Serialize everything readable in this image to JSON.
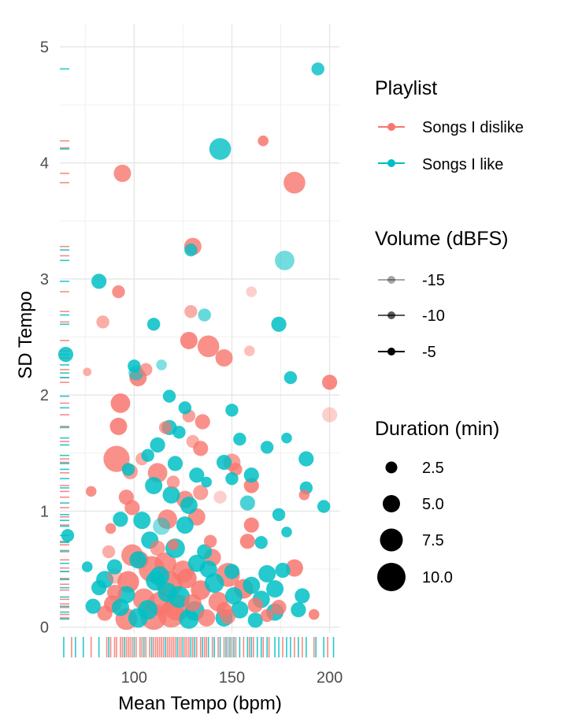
{
  "chart_data": {
    "type": "scatter",
    "xlabel": "Mean Tempo (bpm)",
    "ylabel": "SD Tempo",
    "xlim": [
      62,
      205
    ],
    "ylim": [
      -0.05,
      5.2
    ],
    "xticks": [
      100,
      150,
      200
    ],
    "yticks": [
      0,
      1,
      2,
      3,
      4,
      5
    ],
    "grid": true,
    "rug": true,
    "series": [
      {
        "name": "Songs I dislike",
        "color": "#F8766D",
        "points": [
          [
            166,
            4.19,
            2,
            0.85
          ],
          [
            94,
            3.91,
            5,
            0.8
          ],
          [
            182,
            3.83,
            7,
            0.8
          ],
          [
            130,
            3.28,
            5,
            0.8
          ],
          [
            92,
            2.89,
            3,
            0.8
          ],
          [
            160,
            2.89,
            2,
            0.35
          ],
          [
            129,
            2.72,
            3,
            0.6
          ],
          [
            84,
            2.63,
            3,
            0.6
          ],
          [
            128,
            2.47,
            5,
            0.85
          ],
          [
            138,
            2.42,
            7,
            0.8
          ],
          [
            146,
            2.32,
            5,
            0.8
          ],
          [
            159,
            2.38,
            2,
            0.45
          ],
          [
            76,
            2.2,
            1,
            0.6
          ],
          [
            102,
            2.15,
            5,
            0.85
          ],
          [
            106,
            2.22,
            3,
            0.7
          ],
          [
            200,
            2.11,
            4,
            0.85
          ],
          [
            200,
            1.83,
            4,
            0.35
          ],
          [
            93,
            1.93,
            6,
            0.85
          ],
          [
            92,
            1.73,
            5,
            0.85
          ],
          [
            128,
            1.82,
            3,
            0.7
          ],
          [
            135,
            1.77,
            4,
            0.8
          ],
          [
            116,
            1.72,
            3,
            0.7
          ],
          [
            130,
            1.6,
            3,
            0.6
          ],
          [
            91,
            1.45,
            9,
            0.8
          ],
          [
            98,
            1.34,
            4,
            0.7
          ],
          [
            134,
            1.54,
            4,
            0.8
          ],
          [
            104,
            1.45,
            3,
            0.6
          ],
          [
            112,
            1.33,
            6,
            0.8
          ],
          [
            150,
            1.42,
            5,
            0.7
          ],
          [
            152,
            1.36,
            3,
            0.8
          ],
          [
            120,
            1.25,
            3,
            0.7
          ],
          [
            78,
            1.17,
            2,
            0.8
          ],
          [
            96,
            1.12,
            4,
            0.8
          ],
          [
            126,
            1.1,
            5,
            0.8
          ],
          [
            160,
            1.22,
            4,
            0.85
          ],
          [
            134,
            1.16,
            4,
            0.7
          ],
          [
            144,
            1.12,
            3,
            0.35
          ],
          [
            99,
            1.03,
            4,
            0.8
          ],
          [
            132,
            0.95,
            5,
            0.8
          ],
          [
            117,
            0.93,
            6,
            0.8
          ],
          [
            88,
            0.85,
            2,
            0.8
          ],
          [
            160,
            0.88,
            4,
            0.85
          ],
          [
            139,
            0.74,
            3,
            0.8
          ],
          [
            120,
            0.71,
            2,
            0.8
          ],
          [
            112,
            0.68,
            4,
            0.7
          ],
          [
            158,
            0.74,
            4,
            0.85
          ],
          [
            87,
            0.65,
            3,
            0.6
          ],
          [
            103,
            0.58,
            5,
            0.8
          ],
          [
            182,
            0.51,
            5,
            0.85
          ],
          [
            90,
            0.44,
            4,
            0.5
          ],
          [
            109,
            0.5,
            9,
            0.8
          ],
          [
            125,
            0.48,
            7,
            0.8
          ],
          [
            148,
            0.45,
            8,
            0.8
          ],
          [
            97,
            0.39,
            7,
            0.85
          ],
          [
            118,
            0.37,
            9,
            0.85
          ],
          [
            134,
            0.32,
            6,
            0.85
          ],
          [
            156,
            0.33,
            6,
            0.85
          ],
          [
            90,
            0.3,
            4,
            0.8
          ],
          [
            105,
            0.24,
            7,
            0.8
          ],
          [
            113,
            0.2,
            8,
            0.8
          ],
          [
            122,
            0.17,
            9,
            0.85
          ],
          [
            130,
            0.21,
            5,
            0.8
          ],
          [
            143,
            0.22,
            6,
            0.8
          ],
          [
            162,
            0.19,
            4,
            0.8
          ],
          [
            174,
            0.17,
            4,
            0.8
          ],
          [
            192,
            0.11,
            2,
            0.85
          ],
          [
            85,
            0.12,
            4,
            0.8
          ],
          [
            96,
            0.07,
            7,
            0.8
          ],
          [
            110,
            0.09,
            9,
            0.8
          ],
          [
            119,
            0.11,
            9,
            0.8
          ],
          [
            137,
            0.08,
            5,
            0.8
          ],
          [
            148,
            0.09,
            4,
            0.7
          ],
          [
            168,
            0.1,
            3,
            0.8
          ],
          [
            99,
            0.62,
            7,
            0.8
          ],
          [
            116,
            0.55,
            7,
            0.8
          ],
          [
            89,
            0.2,
            5,
            0.85
          ],
          [
            127,
            0.42,
            6,
            0.85
          ],
          [
            140,
            0.6,
            5,
            0.8
          ],
          [
            187,
            1.14,
            2,
            0.8
          ],
          [
            146,
            0.15,
            4,
            0.85
          ]
        ]
      },
      {
        "name": "Songs I like",
        "color": "#00BFC4",
        "points": [
          [
            194,
            4.81,
            3,
            0.8
          ],
          [
            144,
            4.12,
            7,
            0.8
          ],
          [
            129,
            3.25,
            3,
            0.8
          ],
          [
            177,
            3.16,
            6,
            0.55
          ],
          [
            82,
            2.98,
            4,
            0.85
          ],
          [
            110,
            2.61,
            3,
            0.85
          ],
          [
            174,
            2.61,
            4,
            0.85
          ],
          [
            136,
            2.69,
            3,
            0.6
          ],
          [
            65,
            2.35,
            4,
            0.85
          ],
          [
            100,
            2.25,
            3,
            0.85
          ],
          [
            114,
            2.26,
            2,
            0.5
          ],
          [
            101,
            2.19,
            4,
            0.6
          ],
          [
            180,
            2.15,
            3,
            0.85
          ],
          [
            118,
            1.99,
            3,
            0.85
          ],
          [
            126,
            1.89,
            3,
            0.85
          ],
          [
            150,
            1.87,
            3,
            0.85
          ],
          [
            118,
            1.72,
            4,
            0.85
          ],
          [
            123,
            1.68,
            3,
            0.85
          ],
          [
            112,
            1.57,
            4,
            0.85
          ],
          [
            154,
            1.62,
            3,
            0.85
          ],
          [
            178,
            1.63,
            2,
            0.85
          ],
          [
            168,
            1.55,
            3,
            0.85
          ],
          [
            107,
            1.48,
            3,
            0.85
          ],
          [
            121,
            1.41,
            4,
            0.85
          ],
          [
            146,
            1.42,
            4,
            0.85
          ],
          [
            188,
            1.45,
            4,
            0.85
          ],
          [
            97,
            1.36,
            3,
            0.85
          ],
          [
            132,
            1.31,
            4,
            0.85
          ],
          [
            160,
            1.31,
            4,
            0.85
          ],
          [
            150,
            1.28,
            3,
            0.85
          ],
          [
            110,
            1.22,
            5,
            0.85
          ],
          [
            137,
            1.25,
            2,
            0.85
          ],
          [
            188,
            1.2,
            3,
            0.85
          ],
          [
            119,
            1.14,
            5,
            0.85
          ],
          [
            128,
            1.05,
            5,
            0.85
          ],
          [
            158,
            1.07,
            4,
            0.7
          ],
          [
            197,
            1.04,
            3,
            0.85
          ],
          [
            93,
            0.93,
            4,
            0.85
          ],
          [
            104,
            0.92,
            5,
            0.85
          ],
          [
            114,
            0.87,
            5,
            0.5
          ],
          [
            126,
            0.88,
            5,
            0.85
          ],
          [
            174,
            0.97,
            3,
            0.85
          ],
          [
            66,
            0.79,
            3,
            0.85
          ],
          [
            108,
            0.75,
            5,
            0.85
          ],
          [
            121,
            0.68,
            6,
            0.85
          ],
          [
            136,
            0.65,
            4,
            0.85
          ],
          [
            165,
            0.73,
            3,
            0.85
          ],
          [
            178,
            0.82,
            2,
            0.85
          ],
          [
            102,
            0.58,
            5,
            0.85
          ],
          [
            132,
            0.55,
            5,
            0.85
          ],
          [
            150,
            0.48,
            4,
            0.85
          ],
          [
            168,
            0.46,
            5,
            0.85
          ],
          [
            176,
            0.49,
            4,
            0.85
          ],
          [
            85,
            0.41,
            5,
            0.85
          ],
          [
            111,
            0.4,
            6,
            0.85
          ],
          [
            141,
            0.38,
            6,
            0.85
          ],
          [
            160,
            0.36,
            5,
            0.85
          ],
          [
            172,
            0.33,
            5,
            0.85
          ],
          [
            82,
            0.34,
            4,
            0.85
          ],
          [
            96,
            0.28,
            5,
            0.85
          ],
          [
            123,
            0.26,
            7,
            0.85
          ],
          [
            151,
            0.27,
            5,
            0.85
          ],
          [
            165,
            0.24,
            5,
            0.85
          ],
          [
            186,
            0.27,
            4,
            0.85
          ],
          [
            79,
            0.18,
            4,
            0.85
          ],
          [
            93,
            0.17,
            5,
            0.85
          ],
          [
            107,
            0.15,
            6,
            0.85
          ],
          [
            131,
            0.14,
            6,
            0.85
          ],
          [
            154,
            0.15,
            5,
            0.85
          ],
          [
            172,
            0.13,
            5,
            0.85
          ],
          [
            184,
            0.15,
            4,
            0.85
          ],
          [
            102,
            0.08,
            6,
            0.85
          ],
          [
            128,
            0.07,
            6,
            0.85
          ],
          [
            146,
            0.08,
            5,
            0.85
          ],
          [
            162,
            0.06,
            4,
            0.85
          ],
          [
            113,
            0.44,
            6,
            0.85
          ],
          [
            138,
            0.5,
            5,
            0.85
          ],
          [
            90,
            0.52,
            4,
            0.85
          ],
          [
            76,
            0.52,
            2,
            0.85
          ],
          [
            117,
            0.3,
            6,
            0.85
          ]
        ]
      }
    ],
    "rug_x": {
      "dislike": [
        68,
        78,
        86,
        88,
        90,
        91,
        93,
        94,
        96,
        97,
        98,
        99,
        101,
        103,
        104,
        106,
        108,
        110,
        111,
        112,
        113,
        114,
        115,
        117,
        118,
        119,
        120,
        121,
        123,
        124,
        126,
        127,
        128,
        130,
        132,
        134,
        136,
        137,
        140,
        143,
        146,
        148,
        150,
        152,
        156,
        159,
        161,
        166,
        169,
        176,
        182,
        186,
        192,
        199
      ],
      "like": [
        64,
        70,
        74,
        82,
        87,
        95,
        100,
        105,
        109,
        116,
        122,
        125,
        129,
        131,
        135,
        138,
        141,
        144,
        147,
        149,
        151,
        154,
        158,
        160,
        163,
        165,
        168,
        172,
        174,
        178,
        180,
        184,
        188,
        193,
        197,
        202
      ]
    },
    "rug_y": {
      "dislike": [
        4.19,
        4.13,
        3.91,
        3.83,
        3.28,
        3.2,
        2.89,
        2.72,
        2.63,
        2.47,
        2.38,
        2.32,
        2.22,
        2.15,
        2.11,
        1.93,
        1.83,
        1.73,
        1.6,
        1.45,
        1.42,
        1.33,
        1.22,
        1.17,
        1.12,
        1.03,
        0.95,
        0.88,
        0.74,
        0.71,
        0.65,
        0.58,
        0.51,
        0.48,
        0.42,
        0.37,
        0.32,
        0.24,
        0.2,
        0.17,
        0.11,
        0.08
      ],
      "like": [
        4.81,
        4.12,
        3.25,
        3.16,
        2.98,
        2.69,
        2.61,
        2.35,
        2.26,
        2.19,
        2.15,
        1.99,
        1.89,
        1.72,
        1.63,
        1.57,
        1.48,
        1.41,
        1.36,
        1.28,
        1.2,
        1.07,
        0.97,
        0.92,
        0.87,
        0.79,
        0.73,
        0.66,
        0.55,
        0.48,
        0.41,
        0.34,
        0.26,
        0.18,
        0.13,
        0.07
      ]
    },
    "legend": {
      "playlist": {
        "title": "Playlist",
        "items": [
          {
            "label": "Songs I dislike",
            "color": "#F8766D"
          },
          {
            "label": "Songs I like",
            "color": "#00BFC4"
          }
        ]
      },
      "volume": {
        "title": "Volume (dBFS)",
        "items": [
          {
            "label": "-15",
            "alpha": 0.35
          },
          {
            "label": "-10",
            "alpha": 0.65
          },
          {
            "label": "-5",
            "alpha": 1.0
          }
        ]
      },
      "duration": {
        "title": "Duration (min)",
        "items": [
          {
            "label": "2.5",
            "value": 2.5
          },
          {
            "label": "5.0",
            "value": 5.0
          },
          {
            "label": "7.5",
            "value": 7.5
          },
          {
            "label": "10.0",
            "value": 10.0
          }
        ]
      }
    }
  }
}
